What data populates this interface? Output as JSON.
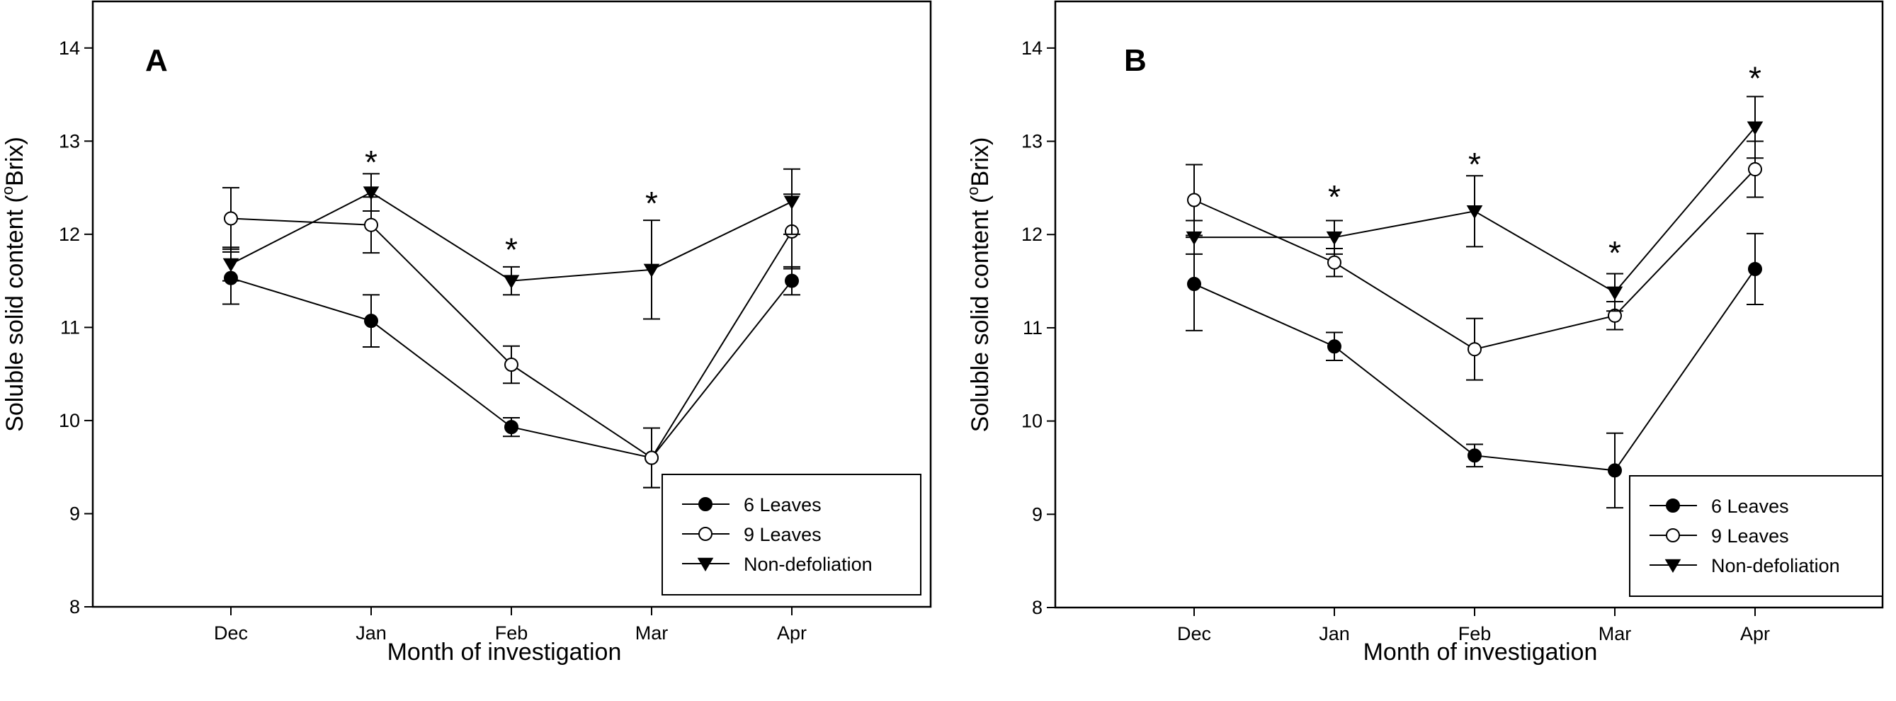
{
  "chart_data": [
    {
      "type": "line",
      "panel_label": "A",
      "categories": [
        "Dec",
        "Jan",
        "Feb",
        "Mar",
        "Apr"
      ],
      "xlabel": "Month of investigation",
      "ylabel_prefix": "Soluble solid content (",
      "ylabel_sup": "o",
      "ylabel_suffix": "Brix)",
      "ylim": [
        8,
        14.5
      ],
      "yticks": [
        8,
        9,
        10,
        11,
        12,
        13,
        14
      ],
      "ytick_labels": [
        "8",
        "9",
        "10",
        "11",
        "12",
        "13",
        "14"
      ],
      "grid": false,
      "legend_position": "bottom-right",
      "series": [
        {
          "name": "6 Leaves",
          "marker": "filled-circle",
          "values": [
            11.53,
            11.07,
            9.93,
            9.6,
            11.5
          ],
          "errors": [
            0.28,
            0.28,
            0.1,
            0.32,
            0.15
          ]
        },
        {
          "name": "9 Leaves",
          "marker": "open-circle",
          "values": [
            12.17,
            12.1,
            10.6,
            9.6,
            12.03
          ],
          "errors": [
            0.33,
            0.3,
            0.2,
            0.32,
            0.4
          ]
        },
        {
          "name": "Non-defoliation",
          "marker": "filled-triangle-down",
          "values": [
            11.68,
            12.45,
            11.5,
            11.62,
            12.35
          ],
          "errors": [
            0.18,
            0.2,
            0.15,
            0.53,
            0.35
          ]
        }
      ],
      "significance": [
        {
          "category": "Jan",
          "label": "*",
          "y": 12.82
        },
        {
          "category": "Feb",
          "label": "*",
          "y": 11.88
        },
        {
          "category": "Mar",
          "label": "*",
          "y": 12.38
        }
      ]
    },
    {
      "type": "line",
      "panel_label": "B",
      "categories": [
        "Dec",
        "Jan",
        "Feb",
        "Mar",
        "Apr"
      ],
      "xlabel": "Month of investigation",
      "ylabel_prefix": "Soluble solid content (",
      "ylabel_sup": "o",
      "ylabel_suffix": "Brix)",
      "ylim": [
        8,
        14.5
      ],
      "yticks": [
        8,
        9,
        10,
        11,
        12,
        13,
        14
      ],
      "ytick_labels": [
        "8",
        "9",
        "10",
        "11",
        "12",
        "13",
        "14"
      ],
      "grid": false,
      "legend_position": "bottom-right",
      "series": [
        {
          "name": "6 Leaves",
          "marker": "filled-circle",
          "values": [
            11.47,
            10.8,
            9.63,
            9.47,
            11.63
          ],
          "errors": [
            0.5,
            0.15,
            0.12,
            0.4,
            0.38
          ]
        },
        {
          "name": "9 Leaves",
          "marker": "open-circle",
          "values": [
            12.37,
            11.7,
            10.77,
            11.13,
            12.7
          ],
          "errors": [
            0.38,
            0.15,
            0.33,
            0.15,
            0.3
          ]
        },
        {
          "name": "Non-defoliation",
          "marker": "filled-triangle-down",
          "values": [
            11.97,
            11.97,
            12.25,
            11.38,
            13.15
          ],
          "errors": [
            0.18,
            0.18,
            0.38,
            0.2,
            0.33
          ]
        }
      ],
      "significance": [
        {
          "category": "Jan",
          "label": "*",
          "y": 12.45
        },
        {
          "category": "Feb",
          "label": "*",
          "y": 12.8
        },
        {
          "category": "Mar",
          "label": "*",
          "y": 11.85
        },
        {
          "category": "Apr",
          "label": "*",
          "y": 13.72
        }
      ]
    }
  ]
}
